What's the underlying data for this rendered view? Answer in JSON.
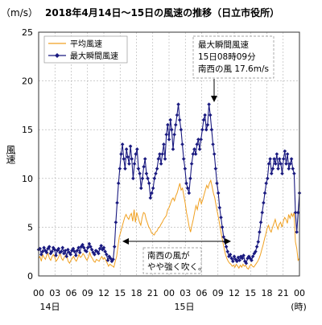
{
  "chart_data": {
    "type": "line",
    "title": "2018年4月14日～15日の風速の推移（日立市役所）",
    "y_unit_label": "（m/s）",
    "ylabel": "風速",
    "ylim": [
      0,
      25
    ],
    "y_ticks": [
      0,
      5,
      10,
      15,
      20,
      25
    ],
    "x_ticks": [
      "00",
      "03",
      "06",
      "09",
      "12",
      "15",
      "18",
      "21",
      "00",
      "03",
      "06",
      "09",
      "12",
      "15",
      "18",
      "21",
      "00"
    ],
    "day_labels": [
      "14日",
      "15日"
    ],
    "x_unit_label": "(時)",
    "grid": true,
    "legend_position": "top-left",
    "series": [
      {
        "name": "平均風速",
        "color": "#f0a020",
        "marker": "none",
        "values": [
          1.8,
          2.0,
          1.5,
          2.2,
          1.9,
          1.7,
          2.1,
          2.3,
          1.8,
          1.6,
          2.0,
          2.2,
          1.9,
          1.5,
          1.7,
          2.0,
          2.4,
          1.8,
          1.6,
          1.9,
          2.1,
          2.0,
          1.5,
          1.3,
          1.6,
          1.8,
          2.0,
          1.7,
          1.5,
          1.8,
          2.2,
          1.9,
          2.0,
          2.3,
          2.1,
          1.8,
          1.6,
          1.9,
          2.4,
          2.0,
          1.8,
          1.5,
          1.4,
          1.7,
          1.6,
          1.5,
          1.8,
          2.0,
          1.7,
          1.9,
          1.6,
          1.3,
          1.0,
          1.2,
          1.1,
          1.0,
          0.9,
          1.5,
          2.0,
          3.0,
          4.0,
          4.5,
          5.0,
          5.5,
          6.0,
          6.3,
          6.0,
          5.8,
          6.2,
          6.4,
          5.6,
          6.8,
          5.5,
          6.5,
          6.0,
          5.5,
          5.2,
          6.0,
          6.5,
          6.4,
          5.8,
          5.4,
          5.0,
          4.8,
          4.4,
          4.3,
          4.2,
          4.5,
          4.6,
          4.9,
          5.0,
          5.3,
          5.5,
          5.8,
          6.0,
          6.2,
          6.8,
          7.0,
          7.4,
          7.8,
          8.0,
          7.7,
          8.2,
          8.5,
          9.0,
          9.5,
          8.8,
          9.0,
          8.2,
          7.5,
          6.5,
          5.8,
          5.0,
          4.5,
          5.2,
          5.8,
          6.5,
          7.2,
          6.8,
          7.5,
          8.0,
          7.4,
          7.8,
          8.3,
          8.8,
          9.3,
          9.0,
          9.5,
          9.8,
          9.2,
          8.5,
          8.0,
          7.2,
          6.5,
          5.8,
          5.0,
          4.2,
          3.5,
          2.8,
          2.2,
          1.8,
          1.5,
          1.3,
          1.2,
          1.0,
          1.1,
          0.9,
          1.2,
          1.0,
          0.8,
          1.1,
          0.9,
          1.2,
          1.0,
          1.1,
          0.8,
          0.7,
          1.0,
          1.2,
          1.0,
          0.9,
          1.1,
          1.3,
          1.5,
          1.8,
          2.2,
          2.7,
          3.2,
          3.8,
          4.3,
          4.9,
          5.2,
          4.7,
          4.5,
          5.0,
          5.4,
          5.8,
          5.2,
          4.8,
          5.3,
          5.5,
          5.0,
          5.6,
          6.0,
          5.8,
          5.4,
          6.3,
          5.9,
          6.4,
          6.1,
          6.5,
          3.5,
          2.8,
          1.6,
          1.8
        ]
      },
      {
        "name": "最大瞬間風速",
        "color": "#1a1a80",
        "marker": "diamond",
        "values": [
          2.7,
          2.8,
          2.2,
          2.5,
          2.9,
          2.6,
          2.4,
          2.8,
          3.0,
          2.3,
          2.5,
          2.9,
          2.7,
          2.1,
          2.6,
          2.8,
          2.4,
          2.5,
          2.9,
          2.3,
          2.6,
          2.0,
          2.7,
          2.4,
          2.2,
          2.6,
          2.8,
          2.5,
          2.1,
          2.6,
          2.9,
          2.4,
          3.0,
          3.2,
          2.9,
          2.6,
          2.5,
          2.9,
          3.3,
          3.0,
          2.7,
          2.4,
          2.2,
          2.6,
          2.5,
          2.3,
          2.8,
          3.1,
          2.7,
          2.9,
          2.5,
          2.2,
          1.6,
          2.0,
          1.8,
          1.5,
          1.7,
          3.0,
          5.5,
          7.5,
          9.5,
          11.0,
          12.5,
          13.5,
          12.0,
          11.0,
          13.0,
          12.2,
          11.5,
          13.3,
          12.0,
          10.0,
          11.5,
          12.5,
          13.0,
          11.0,
          10.5,
          9.0,
          10.0,
          11.2,
          12.0,
          10.5,
          10.0,
          9.5,
          8.0,
          8.5,
          9.0,
          10.0,
          10.5,
          11.0,
          12.0,
          12.5,
          11.5,
          12.5,
          13.5,
          12.0,
          14.5,
          15.5,
          14.0,
          16.0,
          15.0,
          13.0,
          14.5,
          15.5,
          16.5,
          17.6,
          16.0,
          15.0,
          13.5,
          12.0,
          11.0,
          9.5,
          9.0,
          8.5,
          10.0,
          11.5,
          12.5,
          13.0,
          12.5,
          13.5,
          14.0,
          13.0,
          14.0,
          15.0,
          16.0,
          16.5,
          15.0,
          15.5,
          17.6,
          16.5,
          15.0,
          13.5,
          12.5,
          11.0,
          9.5,
          8.5,
          7.0,
          6.0,
          5.0,
          4.0,
          3.5,
          3.0,
          2.5,
          2.0,
          2.2,
          1.8,
          1.5,
          2.0,
          1.7,
          1.5,
          1.9,
          1.6,
          2.0,
          1.8,
          2.1,
          1.5,
          1.3,
          1.8,
          2.0,
          1.8,
          1.6,
          2.0,
          2.3,
          2.5,
          3.0,
          3.5,
          4.5,
          5.5,
          6.5,
          7.5,
          8.5,
          9.5,
          10.0,
          11.5,
          12.0,
          10.5,
          11.0,
          12.0,
          11.5,
          12.5,
          11.0,
          12.0,
          11.5,
          10.5,
          12.0,
          12.8,
          11.5,
          12.5,
          11.0,
          11.5,
          12.0,
          11.0,
          10.5,
          6.5,
          4.5,
          6.5,
          8.5
        ]
      }
    ],
    "annotations": [
      {
        "id": "peak",
        "lines": [
          "最大瞬間風速",
          "15日08時09分",
          "南西の風 17.6m/s"
        ]
      },
      {
        "id": "strong",
        "lines": [
          "南西の風が",
          "やや強く吹く。"
        ]
      }
    ]
  }
}
